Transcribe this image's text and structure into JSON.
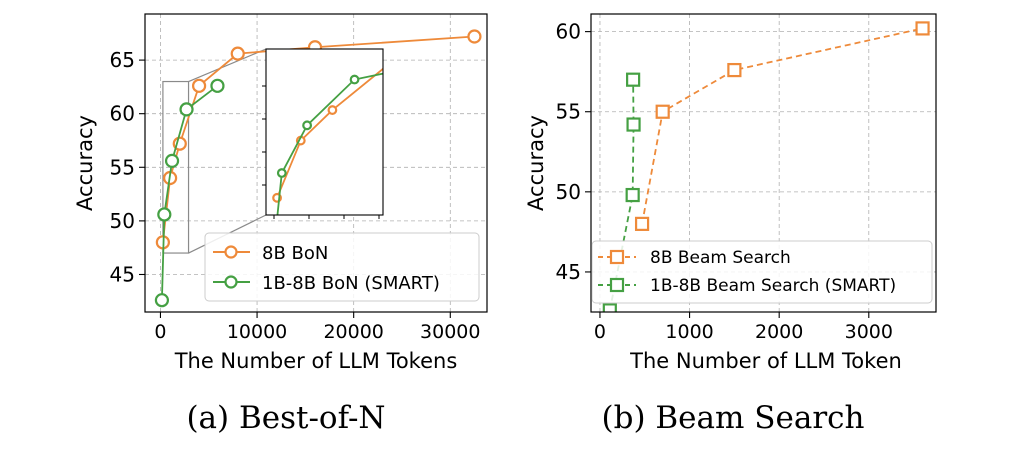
{
  "colors": {
    "orange": "#ee8a3a",
    "green": "#45a043",
    "axis": "#000000",
    "inset_box": "#8a8a8a"
  },
  "captions": {
    "a": "(a) Best-of-N",
    "b": "(b) Beam Search"
  },
  "chart_data": [
    {
      "id": "a",
      "type": "line",
      "title": "",
      "xlabel": "The Number of LLM Tokens",
      "ylabel": "Accuracy",
      "xlim": [
        -1600,
        33800
      ],
      "ylim": [
        41.5,
        69.3
      ],
      "xticks": [
        0,
        10000,
        20000,
        30000
      ],
      "xtick_labels": [
        "0",
        "10000",
        "20000",
        "30000"
      ],
      "yticks": [
        45,
        50,
        55,
        60,
        65
      ],
      "ytick_labels": [
        "45",
        "50",
        "55",
        "60",
        "65"
      ],
      "legend": "bottom-right",
      "marker": "circle",
      "linestyle": "solid",
      "series": [
        {
          "name": "8B BoN",
          "color": "#ee8a3a",
          "x": [
            250,
            1000,
            2000,
            4000,
            8000,
            16000,
            32500
          ],
          "y": [
            48.0,
            54.0,
            57.2,
            62.6,
            65.6,
            66.2,
            67.2
          ]
        },
        {
          "name": "1B-8B BoN (SMART)",
          "color": "#45a043",
          "x": [
            150,
            400,
            1200,
            2700,
            5900
          ],
          "y": [
            42.6,
            50.6,
            55.6,
            60.4,
            62.6
          ]
        }
      ],
      "inset": {
        "zoom_region": {
          "x": [
            150,
            2700
          ],
          "y": [
            47,
            63
          ]
        },
        "xticks": 4,
        "yticks": 4
      }
    },
    {
      "id": "b",
      "type": "line",
      "title": "",
      "xlabel": "The Number of LLM Token",
      "ylabel": "Accuracy",
      "xlim": [
        -100,
        3750
      ],
      "ylim": [
        42.5,
        61.1
      ],
      "xticks": [
        0,
        1000,
        2000,
        3000
      ],
      "xtick_labels": [
        "0",
        "1000",
        "2000",
        "3000"
      ],
      "yticks": [
        45,
        50,
        55,
        60
      ],
      "ytick_labels": [
        "45",
        "50",
        "55",
        "60"
      ],
      "legend": "bottom-right",
      "marker": "square",
      "linestyle": "dashed",
      "series": [
        {
          "name": "8B Beam Search",
          "color": "#ee8a3a",
          "x": [
            470,
            700,
            1500,
            3600
          ],
          "y": [
            48.0,
            55.0,
            57.6,
            60.2
          ]
        },
        {
          "name": "1B-8B Beam Search (SMART)",
          "color": "#45a043",
          "x": [
            110,
            365,
            375,
            370
          ],
          "y": [
            42.6,
            49.8,
            54.2,
            57.0
          ]
        }
      ]
    }
  ]
}
